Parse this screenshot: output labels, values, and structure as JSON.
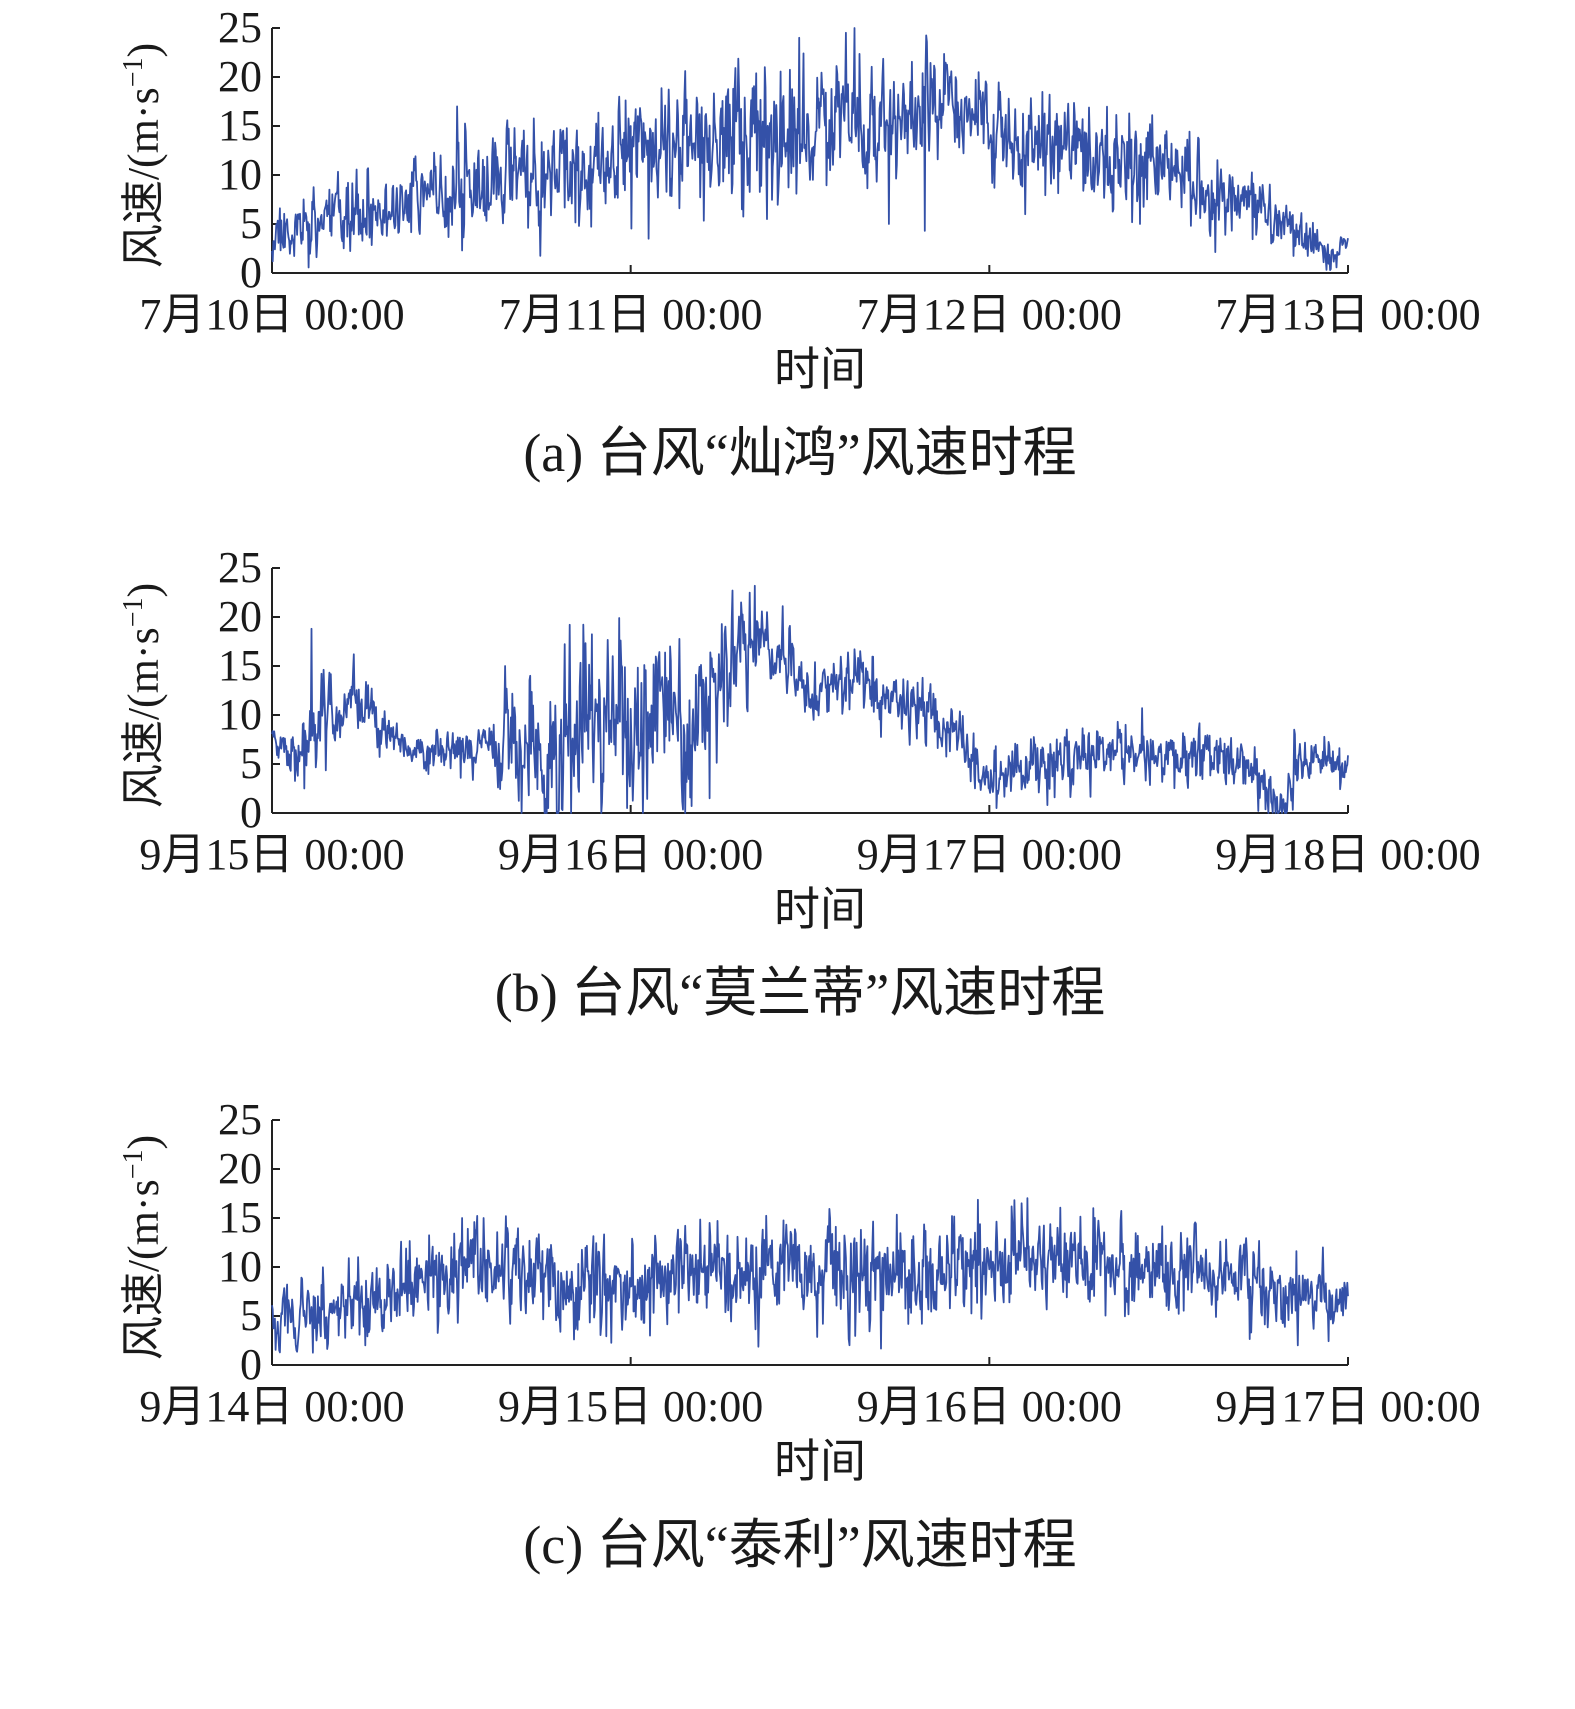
{
  "chart_data": [
    {
      "type": "line",
      "caption": "(a) 台风“灿鸿”风速时程",
      "xlabel": "时间",
      "ylabel": "风速/(m·s",
      "ylabel_sup": "−1",
      "ylabel_close": ")",
      "ylim": [
        0,
        25
      ],
      "yticks": [
        0,
        5,
        10,
        15,
        20,
        25
      ],
      "xlim": [
        0,
        3
      ],
      "xticks": [
        {
          "pos": 0,
          "label": "7月10日 00:00"
        },
        {
          "pos": 1,
          "label": "7月11日 00:00"
        },
        {
          "pos": 2,
          "label": "7月12日 00:00"
        },
        {
          "pos": 3,
          "label": "7月13日 00:00"
        }
      ],
      "line_color": "#3451a8",
      "series": [
        {
          "mean": [
            [
              0.0,
              4.0
            ],
            [
              0.15,
              5.0
            ],
            [
              0.3,
              6.0
            ],
            [
              0.45,
              8.0
            ],
            [
              0.6,
              9.0
            ],
            [
              0.75,
              10.0
            ],
            [
              0.85,
              11.0
            ],
            [
              1.0,
              13.0
            ],
            [
              1.2,
              13.5
            ],
            [
              1.35,
              14.0
            ],
            [
              1.5,
              15.5
            ],
            [
              1.65,
              15.0
            ],
            [
              1.75,
              14.0
            ],
            [
              1.85,
              18.0
            ],
            [
              1.95,
              17.0
            ],
            [
              2.05,
              13.0
            ],
            [
              2.3,
              12.0
            ],
            [
              2.5,
              10.0
            ],
            [
              2.7,
              8.0
            ],
            [
              2.8,
              6.0
            ],
            [
              2.9,
              3.0
            ],
            [
              2.95,
              1.0
            ],
            [
              3.0,
              3.5
            ]
          ],
          "spread": [
            [
              0.0,
              1.5
            ],
            [
              0.5,
              2.5
            ],
            [
              1.0,
              3.5
            ],
            [
              1.6,
              4.0
            ],
            [
              1.9,
              2.5
            ],
            [
              2.1,
              3.0
            ],
            [
              2.5,
              3.0
            ],
            [
              2.8,
              1.5
            ],
            [
              3.0,
              0.8
            ]
          ],
          "peaks": [
            [
              0.16,
              8.5
            ],
            [
              0.47,
              12.0
            ],
            [
              0.53,
              12.8
            ],
            [
              1.0,
              15.0
            ],
            [
              1.02,
              16.0
            ],
            [
              1.25,
              15.8
            ],
            [
              1.4,
              17.5
            ],
            [
              1.47,
              24.0
            ],
            [
              1.58,
              19.5
            ],
            [
              1.68,
              18.0
            ],
            [
              1.78,
              19.5
            ],
            [
              1.88,
              21.0
            ],
            [
              1.97,
              20.5
            ],
            [
              2.03,
              18.5
            ],
            [
              2.19,
              14.5
            ],
            [
              2.42,
              12.0
            ],
            [
              2.67,
              10.0
            ]
          ],
          "troughs": [
            [
              0.53,
              2.3
            ],
            [
              1.05,
              3.5
            ],
            [
              1.31,
              6.5
            ],
            [
              1.38,
              5.5
            ],
            [
              1.72,
              5.0
            ],
            [
              1.82,
              4.3
            ],
            [
              2.1,
              6.0
            ],
            [
              2.42,
              5.0
            ],
            [
              2.95,
              0.3
            ]
          ],
          "seed": 11
        }
      ]
    },
    {
      "type": "line",
      "caption": "(b) 台风“莫兰蒂”风速时程",
      "xlabel": "时间",
      "ylabel": "风速/(m·s",
      "ylabel_sup": "−1",
      "ylabel_close": ")",
      "ylim": [
        0,
        25
      ],
      "yticks": [
        0,
        5,
        10,
        15,
        20,
        25
      ],
      "xlim": [
        0,
        3
      ],
      "xticks": [
        {
          "pos": 0,
          "label": "9月15日 00:00"
        },
        {
          "pos": 1,
          "label": "9月16日 00:00"
        },
        {
          "pos": 2,
          "label": "9月17日 00:00"
        },
        {
          "pos": 3,
          "label": "9月18日 00:00"
        }
      ],
      "line_color": "#3451a8",
      "series": [
        {
          "mean": [
            [
              0.0,
              7.0
            ],
            [
              0.08,
              5.0
            ],
            [
              0.1,
              8.0
            ],
            [
              0.15,
              11.0
            ],
            [
              0.25,
              11.0
            ],
            [
              0.35,
              6.5
            ],
            [
              0.5,
              6.0
            ],
            [
              0.6,
              7.0
            ],
            [
              0.7,
              6.0
            ],
            [
              0.8,
              3.0
            ],
            [
              0.85,
              9.0
            ],
            [
              1.0,
              9.0
            ],
            [
              1.1,
              12.0
            ],
            [
              1.15,
              7.0
            ],
            [
              1.25,
              14.0
            ],
            [
              1.35,
              17.0
            ],
            [
              1.45,
              15.0
            ],
            [
              1.5,
              12.0
            ],
            [
              1.65,
              13.0
            ],
            [
              1.75,
              12.0
            ],
            [
              1.85,
              10.0
            ],
            [
              1.93,
              6.5
            ],
            [
              2.0,
              2.0
            ],
            [
              2.08,
              5.0
            ],
            [
              2.3,
              6.0
            ],
            [
              2.6,
              6.0
            ],
            [
              2.7,
              5.0
            ],
            [
              2.77,
              2.0
            ],
            [
              2.82,
              1.0
            ],
            [
              2.87,
              5.5
            ],
            [
              3.0,
              5.0
            ]
          ],
          "spread": [
            [
              0.0,
              1.0
            ],
            [
              0.12,
              2.5
            ],
            [
              0.3,
              1.2
            ],
            [
              0.6,
              1.2
            ],
            [
              0.7,
              4.0
            ],
            [
              1.0,
              4.5
            ],
            [
              1.3,
              3.0
            ],
            [
              1.45,
              2.0
            ],
            [
              1.8,
              1.8
            ],
            [
              2.1,
              1.8
            ],
            [
              2.7,
              1.5
            ],
            [
              2.9,
              1.6
            ],
            [
              3.0,
              1.5
            ]
          ],
          "peaks": [
            [
              0.11,
              18.8
            ],
            [
              0.65,
              15.0
            ],
            [
              0.72,
              14.0
            ],
            [
              0.83,
              19.2
            ],
            [
              0.95,
              16.0
            ],
            [
              1.11,
              17.0
            ],
            [
              1.38,
              20.5
            ],
            [
              2.38,
              9.0
            ],
            [
              2.85,
              8.5
            ]
          ],
          "troughs": [
            [
              0.09,
              2.5
            ],
            [
              0.77,
              0.5
            ],
            [
              0.8,
              0.3
            ],
            [
              0.99,
              0.5
            ],
            [
              1.17,
              0.7
            ],
            [
              1.22,
              1.5
            ],
            [
              2.02,
              0.5
            ],
            [
              2.75,
              0.2
            ],
            [
              2.83,
              0.2
            ]
          ],
          "seed": 23
        }
      ]
    },
    {
      "type": "line",
      "caption": "(c) 台风“泰利”风速时程",
      "xlabel": "时间",
      "ylabel": "风速/(m·s",
      "ylabel_sup": "−1",
      "ylabel_close": ")",
      "ylim": [
        0,
        25
      ],
      "yticks": [
        0,
        5,
        10,
        15,
        20,
        25
      ],
      "xlim": [
        0,
        3
      ],
      "xticks": [
        {
          "pos": 0,
          "label": "9月14日 00:00"
        },
        {
          "pos": 1,
          "label": "9月15日 00:00"
        },
        {
          "pos": 2,
          "label": "9月16日 00:00"
        },
        {
          "pos": 3,
          "label": "9月17日 00:00"
        }
      ],
      "line_color": "#3451a8",
      "series": [
        {
          "mean": [
            [
              0.0,
              5.0
            ],
            [
              0.2,
              6.0
            ],
            [
              0.3,
              7.0
            ],
            [
              0.45,
              9.0
            ],
            [
              0.55,
              10.5
            ],
            [
              0.75,
              9.5
            ],
            [
              0.82,
              7.0
            ],
            [
              1.0,
              8.5
            ],
            [
              1.2,
              9.5
            ],
            [
              1.5,
              9.0
            ],
            [
              1.8,
              9.0
            ],
            [
              2.0,
              10.0
            ],
            [
              2.2,
              11.5
            ],
            [
              2.4,
              10.0
            ],
            [
              2.6,
              9.5
            ],
            [
              2.75,
              8.0
            ],
            [
              3.0,
              7.5
            ]
          ],
          "spread": [
            [
              0.0,
              1.8
            ],
            [
              0.5,
              2.5
            ],
            [
              1.0,
              2.8
            ],
            [
              2.0,
              3.0
            ],
            [
              2.5,
              2.5
            ],
            [
              3.0,
              2.0
            ]
          ],
          "peaks": [
            [
              0.24,
              11.0
            ],
            [
              0.53,
              15.0
            ],
            [
              0.59,
              15.0
            ],
            [
              1.22,
              14.5
            ],
            [
              2.09,
              16.5
            ],
            [
              2.29,
              16.0
            ],
            [
              2.93,
              12.0
            ]
          ],
          "troughs": [
            [
              0.02,
              1.5
            ],
            [
              0.26,
              2.0
            ],
            [
              2.86,
              2.0
            ]
          ],
          "seed": 37
        }
      ]
    }
  ]
}
